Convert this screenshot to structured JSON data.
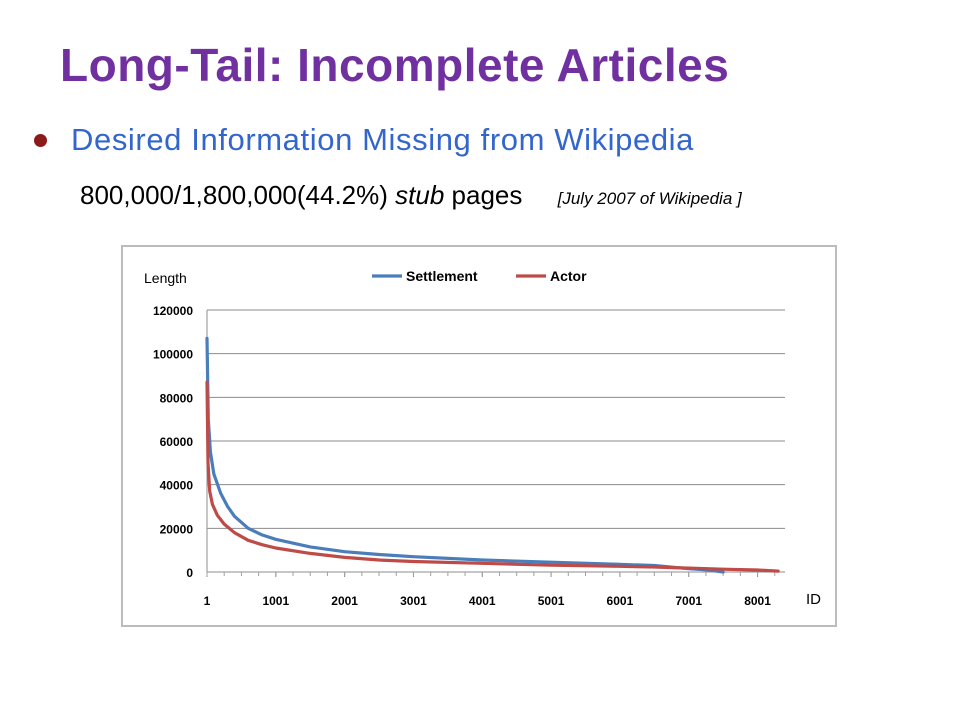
{
  "slide": {
    "title": "Long-Tail: Incomplete Articles",
    "bullet": "Desired Information Missing from Wikipedia",
    "stat_main": "800,000/1,800,000(44.2%)",
    "stat_italic": "stub",
    "stat_tail": "pages",
    "stat_note": "[July 2007 of Wikipedia ]"
  },
  "chart_data": {
    "type": "line",
    "xlabel": "ID",
    "ylabel": "Length",
    "ylim": [
      0,
      120000
    ],
    "xlim": [
      1,
      8400
    ],
    "yticks": [
      "0",
      "20000",
      "40000",
      "60000",
      "80000",
      "100000",
      "120000"
    ],
    "xticks": [
      "1",
      "1001",
      "2001",
      "3001",
      "4001",
      "5001",
      "6001",
      "7001",
      "8001"
    ],
    "legend_position": "top",
    "grid": true,
    "series": [
      {
        "name": "Settlement",
        "color": "#4A7EBB",
        "points": [
          [
            1,
            107000
          ],
          [
            20,
            70000
          ],
          [
            50,
            55000
          ],
          [
            100,
            45000
          ],
          [
            200,
            36000
          ],
          [
            300,
            30000
          ],
          [
            400,
            25500
          ],
          [
            600,
            20000
          ],
          [
            800,
            17000
          ],
          [
            1000,
            15000
          ],
          [
            1500,
            11500
          ],
          [
            2000,
            9300
          ],
          [
            2500,
            8000
          ],
          [
            3000,
            7000
          ],
          [
            4000,
            5500
          ],
          [
            5000,
            4500
          ],
          [
            6000,
            3500
          ],
          [
            6500,
            3000
          ],
          [
            7000,
            1500
          ],
          [
            7300,
            900
          ],
          [
            7500,
            0
          ]
        ]
      },
      {
        "name": "Actor",
        "color": "#BE4B48",
        "points": [
          [
            1,
            87000
          ],
          [
            15,
            50000
          ],
          [
            40,
            37000
          ],
          [
            80,
            31000
          ],
          [
            150,
            26000
          ],
          [
            250,
            22000
          ],
          [
            400,
            18000
          ],
          [
            600,
            14500
          ],
          [
            800,
            12500
          ],
          [
            1000,
            11000
          ],
          [
            1500,
            8500
          ],
          [
            2000,
            6700
          ],
          [
            2500,
            5500
          ],
          [
            3000,
            4800
          ],
          [
            4000,
            4000
          ],
          [
            5000,
            3100
          ],
          [
            6000,
            2600
          ],
          [
            6500,
            2300
          ],
          [
            7000,
            1800
          ],
          [
            7500,
            1300
          ],
          [
            8000,
            900
          ],
          [
            8300,
            400
          ]
        ]
      }
    ]
  }
}
